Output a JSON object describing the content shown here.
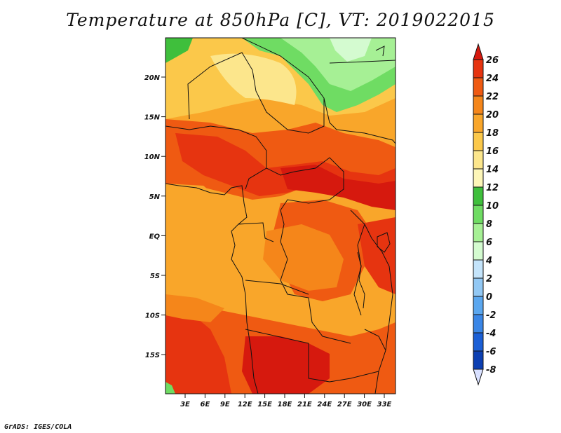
{
  "title": "Temperature at 850hPa [C], VT: 2019022015",
  "credit": "GrADS: IGES/COLA",
  "map": {
    "lat_labels": [
      "20N",
      "15N",
      "10N",
      "5N",
      "EQ",
      "5S",
      "10S",
      "15S"
    ],
    "lon_labels": [
      "3E",
      "6E",
      "9E",
      "12E",
      "15E",
      "18E",
      "21E",
      "24E",
      "27E",
      "30E",
      "33E"
    ]
  },
  "colorbar": {
    "labels": [
      "26",
      "24",
      "22",
      "20",
      "18",
      "16",
      "14",
      "12",
      "10",
      "8",
      "6",
      "4",
      "2",
      "0",
      "-2",
      "-4",
      "-6",
      "-8"
    ],
    "colors": [
      "#d6190e",
      "#e63410",
      "#ef5a12",
      "#f5861a",
      "#f9a62a",
      "#fbc84a",
      "#fce68c",
      "#fdf6b8",
      "#3fbf3c",
      "#6fdc63",
      "#a6f095",
      "#d4fbd0",
      "#c4e4fb",
      "#92c8f4",
      "#5ba7ef",
      "#3a86e6",
      "#1b5fd6",
      "#0c3fb2",
      "#0a2a8a",
      "#08155e"
    ],
    "top_arrow_color": "#d6190e",
    "bottom_arrow_color": "#d8e0ff"
  }
}
